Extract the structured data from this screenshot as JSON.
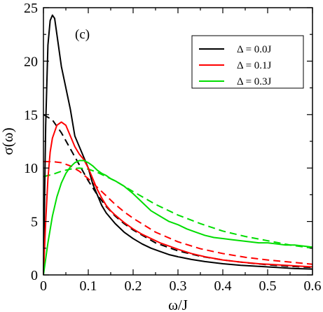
{
  "chart_data": {
    "type": "line",
    "annotation": "(c)",
    "xlabel": "ω/J",
    "ylabel": "σ(ω)",
    "xlim": [
      0,
      0.6
    ],
    "ylim": [
      0,
      25
    ],
    "x_ticks": [
      "0",
      "0.1",
      "0.2",
      "0.3",
      "0.4",
      "0.5",
      "0.6"
    ],
    "y_ticks": [
      "0",
      "5",
      "10",
      "15",
      "20",
      "25"
    ],
    "grid": false,
    "legend_position": "top-right",
    "series": [
      {
        "name": "Δ = 0.0J",
        "style": "solid",
        "color": "#000000",
        "x": [
          0,
          0.005,
          0.01,
          0.015,
          0.02,
          0.025,
          0.03,
          0.04,
          0.05,
          0.06,
          0.07,
          0.08,
          0.09,
          0.1,
          0.11,
          0.12,
          0.13,
          0.14,
          0.15,
          0.16,
          0.18,
          0.2,
          0.22,
          0.24,
          0.26,
          0.28,
          0.3,
          0.33,
          0.36,
          0.4,
          0.44,
          0.48,
          0.52,
          0.56,
          0.6
        ],
        "y": [
          0,
          14,
          21.5,
          23.8,
          24.3,
          24.0,
          22.5,
          19.5,
          17.5,
          15.5,
          13.0,
          12.0,
          11.0,
          10.0,
          8.5,
          7.5,
          6.5,
          5.8,
          5.3,
          4.8,
          4.0,
          3.4,
          2.9,
          2.5,
          2.2,
          1.9,
          1.7,
          1.45,
          1.25,
          1.05,
          0.9,
          0.8,
          0.7,
          0.6,
          0.55
        ]
      },
      {
        "name": "Δ = 0.1J",
        "style": "solid",
        "color": "#ff0000",
        "x": [
          0,
          0.005,
          0.01,
          0.015,
          0.02,
          0.03,
          0.04,
          0.05,
          0.06,
          0.07,
          0.08,
          0.09,
          0.1,
          0.11,
          0.12,
          0.13,
          0.14,
          0.15,
          0.16,
          0.18,
          0.2,
          0.22,
          0.24,
          0.26,
          0.28,
          0.3,
          0.33,
          0.36,
          0.4,
          0.44,
          0.48,
          0.52,
          0.56,
          0.6
        ],
        "y": [
          0,
          5.0,
          9.0,
          11.5,
          12.8,
          14.0,
          14.3,
          14.0,
          13.0,
          12.0,
          11.3,
          10.8,
          10.0,
          9.0,
          8.0,
          7.2,
          6.5,
          6.0,
          5.6,
          4.9,
          4.3,
          3.8,
          3.4,
          3.0,
          2.7,
          2.4,
          2.0,
          1.7,
          1.4,
          1.2,
          1.05,
          0.95,
          0.85,
          0.75
        ]
      },
      {
        "name": "Δ = 0.3J",
        "style": "solid",
        "color": "#00dd00",
        "x": [
          0,
          0.01,
          0.02,
          0.03,
          0.04,
          0.05,
          0.06,
          0.07,
          0.08,
          0.09,
          0.1,
          0.11,
          0.12,
          0.13,
          0.14,
          0.15,
          0.16,
          0.18,
          0.2,
          0.22,
          0.24,
          0.26,
          0.28,
          0.3,
          0.32,
          0.34,
          0.36,
          0.38,
          0.4,
          0.42,
          0.44,
          0.46,
          0.48,
          0.5,
          0.52,
          0.54,
          0.56,
          0.58,
          0.6
        ],
        "y": [
          0,
          3.0,
          5.5,
          7.3,
          8.6,
          9.5,
          10.1,
          10.5,
          10.7,
          10.7,
          10.5,
          10.2,
          9.8,
          9.5,
          9.3,
          9.0,
          8.8,
          8.3,
          7.6,
          6.8,
          6.0,
          5.5,
          5.0,
          4.7,
          4.3,
          4.0,
          3.7,
          3.5,
          3.4,
          3.3,
          3.2,
          3.1,
          3.0,
          3.0,
          2.9,
          2.8,
          2.8,
          2.7,
          2.6
        ]
      }
    ],
    "dashed_series": [
      {
        "color": "#000000",
        "x": [
          0,
          0.02,
          0.04,
          0.06,
          0.08,
          0.1,
          0.12,
          0.14,
          0.16,
          0.18,
          0.2,
          0.25,
          0.3,
          0.35,
          0.4,
          0.45,
          0.5,
          0.55,
          0.6
        ],
        "y": [
          15.0,
          14.5,
          13.3,
          11.8,
          10.3,
          8.8,
          7.5,
          6.4,
          5.5,
          4.8,
          4.2,
          3.0,
          2.25,
          1.75,
          1.4,
          1.15,
          0.95,
          0.8,
          0.7
        ]
      },
      {
        "color": "#ff0000",
        "x": [
          0,
          0.02,
          0.04,
          0.06,
          0.08,
          0.1,
          0.12,
          0.14,
          0.16,
          0.18,
          0.2,
          0.25,
          0.3,
          0.35,
          0.4,
          0.45,
          0.5,
          0.55,
          0.6
        ],
        "y": [
          10.6,
          10.6,
          10.5,
          10.2,
          9.7,
          9.0,
          8.2,
          7.4,
          6.6,
          5.9,
          5.3,
          4.0,
          3.1,
          2.45,
          2.0,
          1.65,
          1.4,
          1.2,
          1.0
        ]
      },
      {
        "color": "#00dd00",
        "x": [
          0,
          0.02,
          0.04,
          0.06,
          0.08,
          0.1,
          0.12,
          0.14,
          0.16,
          0.18,
          0.2,
          0.25,
          0.3,
          0.35,
          0.4,
          0.45,
          0.5,
          0.55,
          0.6
        ],
        "y": [
          9.2,
          9.4,
          9.7,
          9.9,
          10.0,
          9.9,
          9.6,
          9.2,
          8.8,
          8.3,
          7.8,
          6.6,
          5.6,
          4.8,
          4.1,
          3.6,
          3.2,
          2.8,
          2.5
        ]
      }
    ]
  }
}
